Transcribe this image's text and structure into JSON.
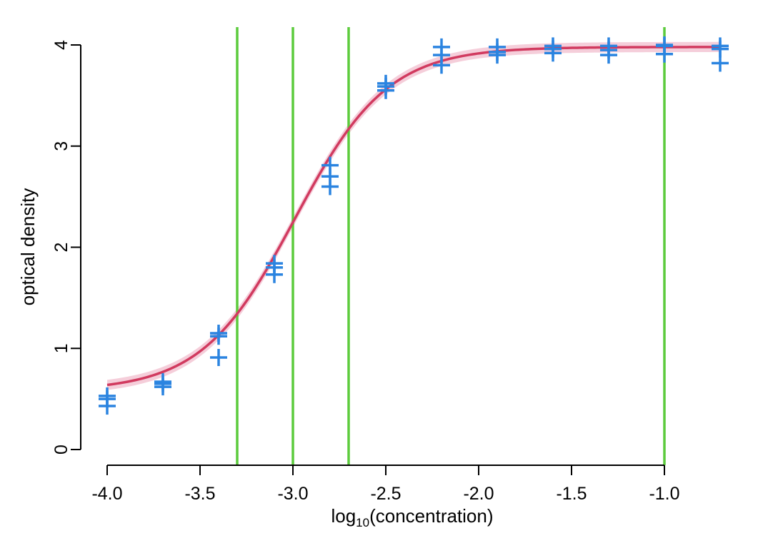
{
  "chart_data": {
    "type": "scatter",
    "title": "",
    "xlabel_main": "log",
    "xlabel_sub": "10",
    "xlabel_rest": "(concentration)",
    "ylabel": "optical density",
    "xlim": [
      -4.0,
      -0.7
    ],
    "ylim": [
      0,
      4
    ],
    "x_ticks": [
      -4.0,
      -3.5,
      -3.0,
      -2.5,
      -2.0,
      -1.5,
      -1.0
    ],
    "x_tick_labels": [
      "-4.0",
      "-3.5",
      "-3.0",
      "-2.5",
      "-2.0",
      "-1.5",
      "-1.0"
    ],
    "y_ticks": [
      0,
      1,
      2,
      3,
      4
    ],
    "y_tick_labels": [
      "0",
      "1",
      "2",
      "3",
      "4"
    ],
    "grid": false,
    "vertical_lines_x": [
      -3.3,
      -3.0,
      -2.7,
      -1.0
    ],
    "points": [
      {
        "x": -4.0,
        "y": 0.43
      },
      {
        "x": -4.0,
        "y": 0.5
      },
      {
        "x": -4.0,
        "y": 0.53
      },
      {
        "x": -3.7,
        "y": 0.62
      },
      {
        "x": -3.7,
        "y": 0.65
      },
      {
        "x": -3.7,
        "y": 0.67
      },
      {
        "x": -3.4,
        "y": 0.91
      },
      {
        "x": -3.4,
        "y": 1.12
      },
      {
        "x": -3.4,
        "y": 1.15
      },
      {
        "x": -3.1,
        "y": 1.73
      },
      {
        "x": -3.1,
        "y": 1.8
      },
      {
        "x": -3.1,
        "y": 1.84
      },
      {
        "x": -2.8,
        "y": 2.6
      },
      {
        "x": -2.8,
        "y": 2.7
      },
      {
        "x": -2.8,
        "y": 2.81
      },
      {
        "x": -2.5,
        "y": 3.55
      },
      {
        "x": -2.5,
        "y": 3.59
      },
      {
        "x": -2.5,
        "y": 3.62
      },
      {
        "x": -2.2,
        "y": 3.8
      },
      {
        "x": -2.2,
        "y": 3.9
      },
      {
        "x": -2.2,
        "y": 3.98
      },
      {
        "x": -1.9,
        "y": 3.9
      },
      {
        "x": -1.9,
        "y": 3.93
      },
      {
        "x": -1.9,
        "y": 3.98
      },
      {
        "x": -1.6,
        "y": 3.92
      },
      {
        "x": -1.6,
        "y": 3.96
      },
      {
        "x": -1.6,
        "y": 3.99
      },
      {
        "x": -1.3,
        "y": 3.9
      },
      {
        "x": -1.3,
        "y": 3.95
      },
      {
        "x": -1.3,
        "y": 3.99
      },
      {
        "x": -1.0,
        "y": 3.91
      },
      {
        "x": -1.0,
        "y": 3.99
      },
      {
        "x": -1.0,
        "y": 4.0
      },
      {
        "x": -0.7,
        "y": 3.82
      },
      {
        "x": -0.7,
        "y": 3.96
      },
      {
        "x": -0.7,
        "y": 3.99
      }
    ],
    "fit_curve": {
      "type": "four-parameter-logistic",
      "bottom": 0.58,
      "top": 3.98,
      "x50": -2.99,
      "slope": 4.0,
      "band_halfwidth": 0.05
    },
    "colors": {
      "points": "#2b84e0",
      "fit_line": "#d13a5f",
      "fit_band": "#f3c6d3",
      "vertical_lines": "#5ccb3c",
      "axes": "#000000"
    }
  }
}
